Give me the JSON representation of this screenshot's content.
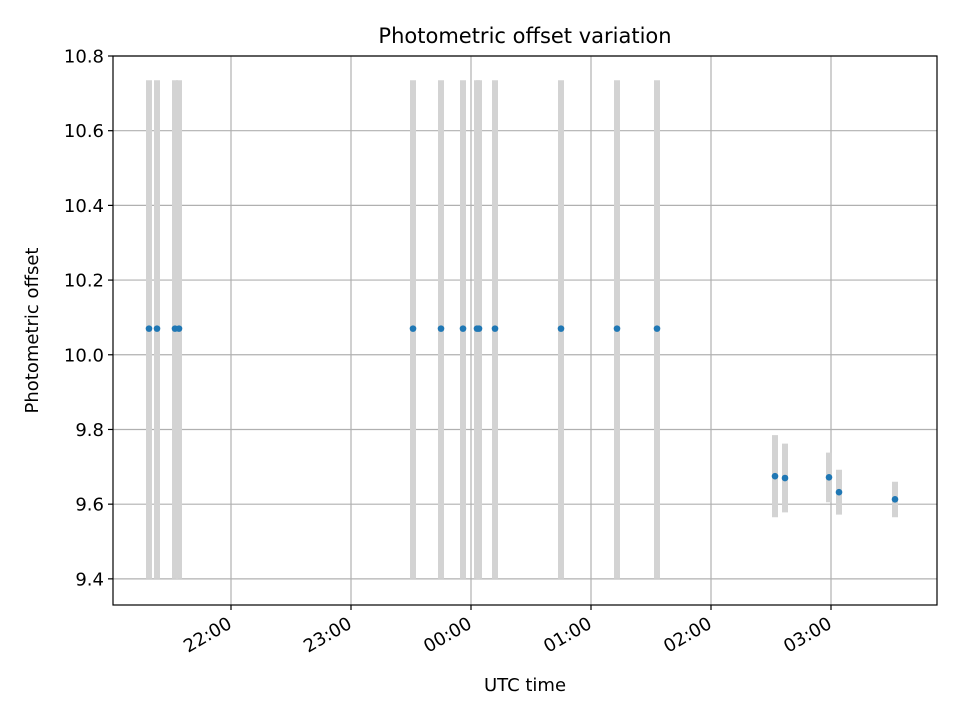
{
  "chart_data": {
    "type": "scatter",
    "title": "Photometric offset variation",
    "xlabel": "UTC time",
    "ylabel": "Photometric offset",
    "grid": true,
    "x_axis_type": "time",
    "xlim": [
      "21:01",
      "03:53"
    ],
    "ylim": [
      9.33,
      10.8
    ],
    "x_ticks": [
      "22:00",
      "23:00",
      "00:00",
      "01:00",
      "02:00",
      "03:00"
    ],
    "y_ticks": [
      "9.4",
      "9.6",
      "9.8",
      "10.0",
      "10.2",
      "10.4",
      "10.6",
      "10.8"
    ],
    "colors": {
      "points": "#1f77b4",
      "error_bars": "#d3d3d3",
      "grid": "#b0b0b0"
    },
    "series": [
      {
        "points": [
          {
            "x": "21:19",
            "y": 10.07,
            "ylow": 9.4,
            "yhigh": 10.735
          },
          {
            "x": "21:23",
            "y": 10.07,
            "ylow": 9.4,
            "yhigh": 10.735
          },
          {
            "x": "21:32",
            "y": 10.07,
            "ylow": 9.4,
            "yhigh": 10.735
          },
          {
            "x": "21:34",
            "y": 10.07,
            "ylow": 9.4,
            "yhigh": 10.735
          },
          {
            "x": "23:31",
            "y": 10.07,
            "ylow": 9.4,
            "yhigh": 10.735
          },
          {
            "x": "23:45",
            "y": 10.07,
            "ylow": 9.4,
            "yhigh": 10.735
          },
          {
            "x": "23:56",
            "y": 10.07,
            "ylow": 9.4,
            "yhigh": 10.735
          },
          {
            "x": "00:03",
            "y": 10.07,
            "ylow": 9.4,
            "yhigh": 10.735
          },
          {
            "x": "00:04",
            "y": 10.07,
            "ylow": 9.4,
            "yhigh": 10.735
          },
          {
            "x": "00:12",
            "y": 10.07,
            "ylow": 9.4,
            "yhigh": 10.735
          },
          {
            "x": "00:45",
            "y": 10.07,
            "ylow": 9.4,
            "yhigh": 10.735
          },
          {
            "x": "01:13",
            "y": 10.07,
            "ylow": 9.4,
            "yhigh": 10.735
          },
          {
            "x": "01:33",
            "y": 10.07,
            "ylow": 9.4,
            "yhigh": 10.735
          },
          {
            "x": "02:32",
            "y": 9.675,
            "ylow": 9.565,
            "yhigh": 9.785
          },
          {
            "x": "02:37",
            "y": 9.67,
            "ylow": 9.578,
            "yhigh": 9.762
          },
          {
            "x": "02:59",
            "y": 9.672,
            "ylow": 9.605,
            "yhigh": 9.738
          },
          {
            "x": "03:04",
            "y": 9.632,
            "ylow": 9.572,
            "yhigh": 9.692
          },
          {
            "x": "03:32",
            "y": 9.613,
            "ylow": 9.565,
            "yhigh": 9.66
          }
        ]
      }
    ]
  }
}
